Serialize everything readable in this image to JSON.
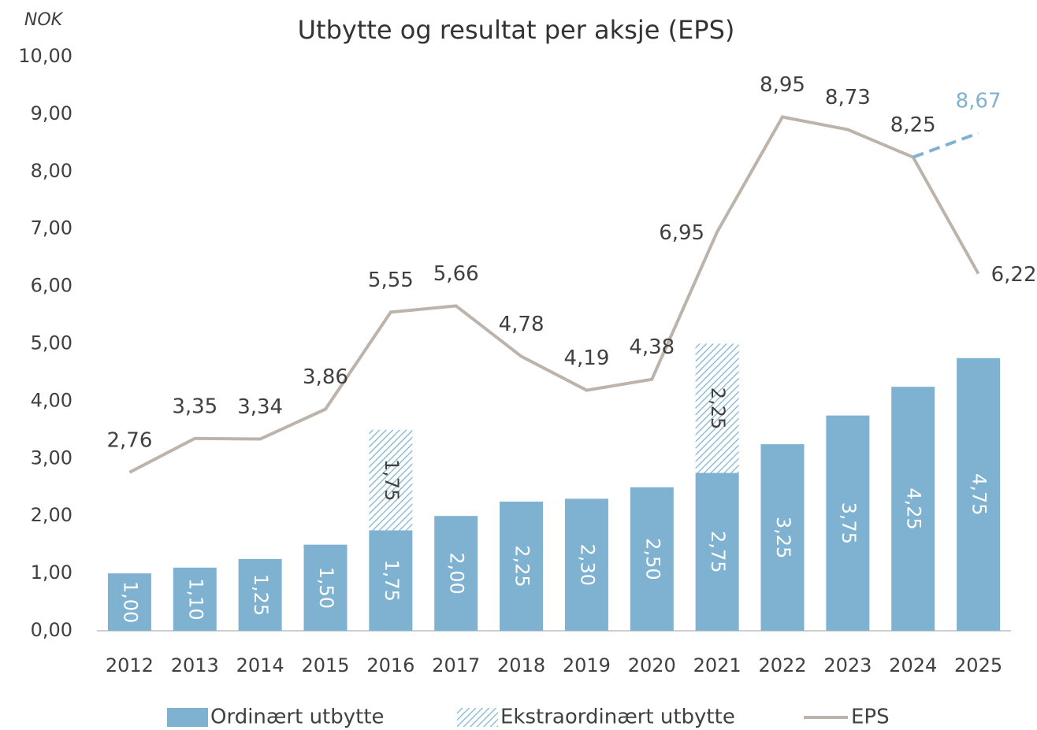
{
  "chart_data": {
    "type": "bar",
    "title": "Utbytte og resultat per aksje (EPS)",
    "y_axis_label": "NOK",
    "categories": [
      "2012",
      "2013",
      "2014",
      "2015",
      "2016",
      "2017",
      "2018",
      "2019",
      "2020",
      "2021",
      "2022",
      "2023",
      "2024",
      "2025"
    ],
    "series": [
      {
        "name": "Ordinært utbytte",
        "kind": "bar",
        "color": "#7fb2d1",
        "values": [
          1.0,
          1.1,
          1.25,
          1.5,
          1.75,
          2.0,
          2.25,
          2.3,
          2.5,
          2.75,
          3.25,
          3.75,
          4.25,
          4.75
        ],
        "value_labels": [
          "1,00",
          "1,10",
          "1,25",
          "1,50",
          "1,75",
          "2,00",
          "2,25",
          "2,30",
          "2,50",
          "2,75",
          "3,25",
          "3,75",
          "4,25",
          "4,75"
        ]
      },
      {
        "name": "Ekstraordinært utbytte",
        "kind": "bar-hatched",
        "color": "#7fb2d1",
        "values": [
          null,
          null,
          null,
          null,
          1.75,
          null,
          null,
          null,
          null,
          2.25,
          null,
          null,
          null,
          null
        ],
        "value_labels": [
          null,
          null,
          null,
          null,
          "1,75",
          null,
          null,
          null,
          null,
          "2,25",
          null,
          null,
          null,
          null
        ]
      },
      {
        "name": "EPS",
        "kind": "line",
        "color": "#bcb3ab",
        "values": [
          2.76,
          3.35,
          3.34,
          3.86,
          5.55,
          5.66,
          4.78,
          4.19,
          4.38,
          6.95,
          8.95,
          8.73,
          8.25,
          6.22
        ],
        "value_labels": [
          "2,76",
          "3,35",
          "3,34",
          "3,86",
          "5,55",
          "5,66",
          "4,78",
          "4,19",
          "4,38",
          "6,95",
          "8,95",
          "8,73",
          "8,25",
          "6,22"
        ]
      },
      {
        "kind": "line-dashed",
        "color": "#7fb2d1",
        "values": [
          null,
          null,
          null,
          null,
          null,
          null,
          null,
          null,
          null,
          null,
          null,
          null,
          8.25,
          8.67
        ],
        "value_labels": [
          null,
          null,
          null,
          null,
          null,
          null,
          null,
          null,
          null,
          null,
          null,
          null,
          null,
          "8,67"
        ]
      }
    ],
    "ylim": [
      0,
      10
    ],
    "yticks": [
      {
        "value": 0,
        "label": "0,00"
      },
      {
        "value": 1,
        "label": "1,00"
      },
      {
        "value": 2,
        "label": "2,00"
      },
      {
        "value": 3,
        "label": "3,00"
      },
      {
        "value": 4,
        "label": "4,00"
      },
      {
        "value": 5,
        "label": "5,00"
      },
      {
        "value": 6,
        "label": "6,00"
      },
      {
        "value": 7,
        "label": "7,00"
      },
      {
        "value": 8,
        "label": "8,00"
      },
      {
        "value": 9,
        "label": "9,00"
      },
      {
        "value": 10,
        "label": "10,00"
      }
    ],
    "grid": false,
    "legend": "bottom"
  }
}
